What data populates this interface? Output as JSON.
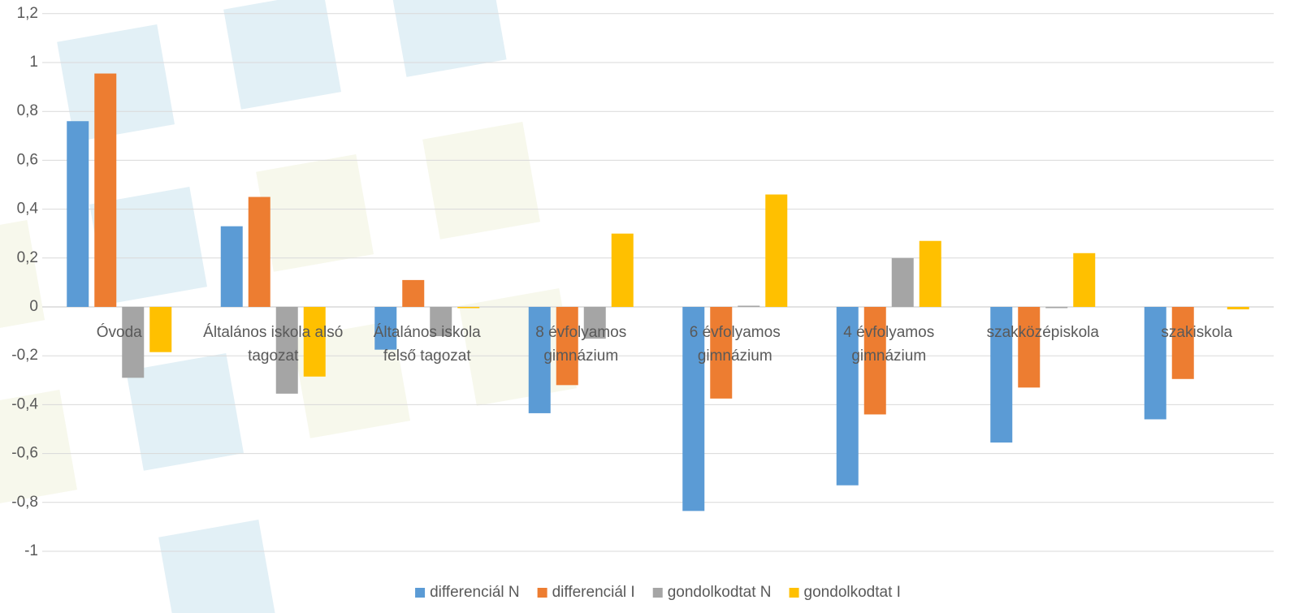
{
  "chart_data": {
    "type": "bar",
    "categories": [
      "Óvoda",
      "Általános iskola alsó tagozat",
      "Általános iskola felső tagozat",
      "8 évfolyamos gimnázium",
      "6 évfolyamos gimnázium",
      "4 évfolyamos gimnázium",
      "szakközépiskola",
      "szakiskola"
    ],
    "series": [
      {
        "name": "differenciál N",
        "color": "#5b9bd5",
        "values": [
          0.76,
          0.33,
          -0.175,
          -0.435,
          -0.835,
          -0.73,
          -0.555,
          -0.46
        ]
      },
      {
        "name": "differenciál I",
        "color": "#ed7d31",
        "values": [
          0.955,
          0.45,
          0.11,
          -0.32,
          -0.375,
          -0.44,
          -0.33,
          -0.295
        ]
      },
      {
        "name": "gondolkodtat N",
        "color": "#a5a5a5",
        "values": [
          -0.29,
          -0.355,
          -0.12,
          -0.13,
          0.005,
          0.2,
          -0.005,
          0
        ]
      },
      {
        "name": "gondolkodtat I",
        "color": "#ffc000",
        "values": [
          -0.185,
          -0.285,
          -0.005,
          0.3,
          0.46,
          0.27,
          0.22,
          -0.01
        ]
      }
    ],
    "ylim": [
      -1.1,
      1.2
    ],
    "yticks": [
      {
        "value": 1.2,
        "label": "1,2"
      },
      1,
      {
        "value": 0.8,
        "label": "0,8"
      },
      {
        "value": 0.6,
        "label": "0,6"
      },
      {
        "value": 0.4,
        "label": "0,4"
      },
      {
        "value": 0.2,
        "label": "0,2"
      },
      0,
      {
        "value": -0.2,
        "label": "-0,2"
      },
      {
        "value": -0.4,
        "label": "-0,4"
      },
      {
        "value": -0.6,
        "label": "-0,6"
      },
      {
        "value": -0.8,
        "label": "-0,8"
      },
      -1
    ],
    "grid": true,
    "legend": "bottom"
  }
}
